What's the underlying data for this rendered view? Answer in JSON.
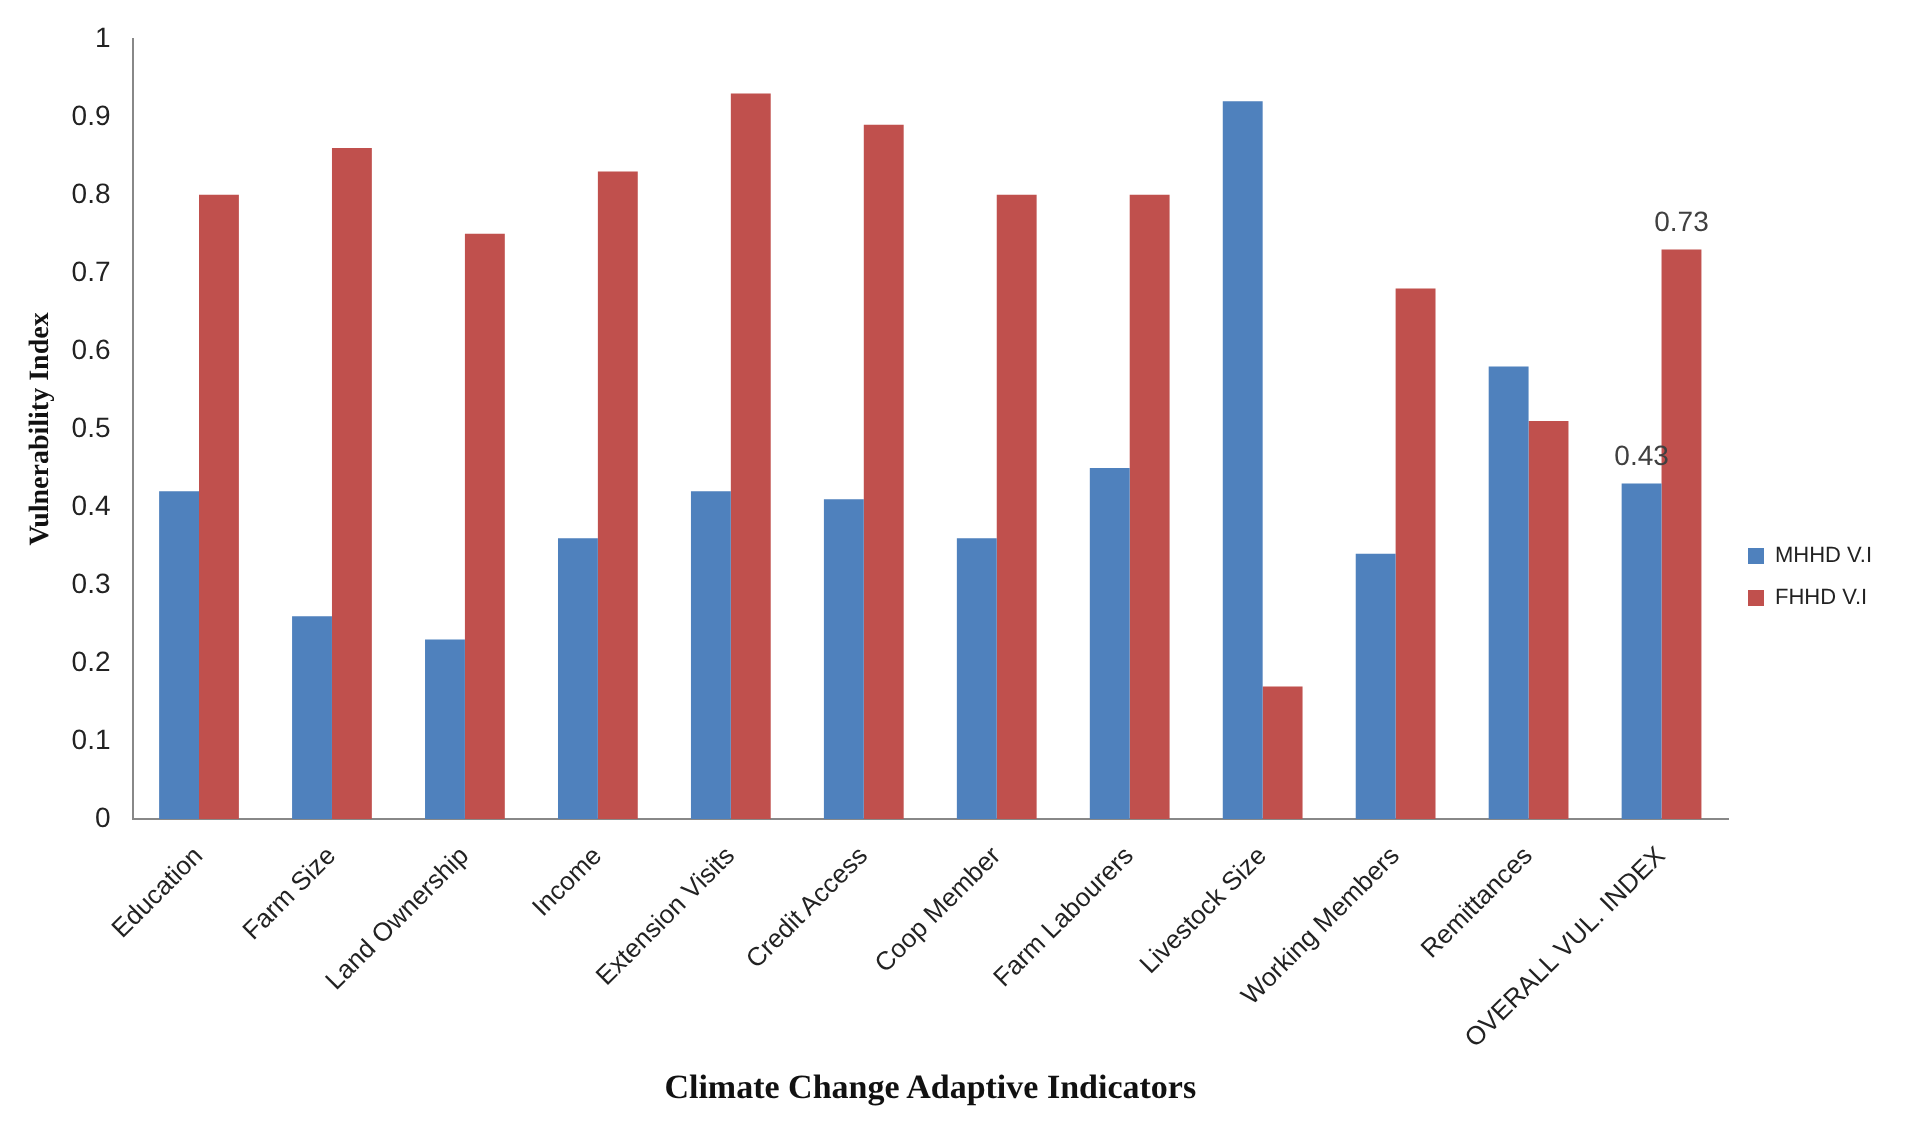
{
  "chart_data": {
    "type": "bar",
    "xlabel": "Climate Change Adaptive Indicators",
    "ylabel": "Vulnerability Index",
    "categories": [
      "Education",
      "Farm Size",
      "Land Ownership",
      "Income",
      "Extension Visits",
      "Credit Access",
      "Coop Member",
      "Farm Labourers",
      "Livestock Size",
      "Working Members",
      "Remittances",
      "OVERALL VUL. INDEX"
    ],
    "series": [
      {
        "name": "MHHD V.I",
        "color": "#4f81bd",
        "values": [
          0.42,
          0.26,
          0.23,
          0.36,
          0.42,
          0.41,
          0.36,
          0.45,
          0.92,
          0.34,
          0.58,
          0.43
        ],
        "value_labels": [
          null,
          null,
          null,
          null,
          null,
          null,
          null,
          null,
          null,
          null,
          null,
          "0.43"
        ]
      },
      {
        "name": "FHHD V.I",
        "color": "#c0504d",
        "values": [
          0.8,
          0.86,
          0.75,
          0.83,
          0.93,
          0.89,
          0.8,
          0.8,
          0.17,
          0.68,
          0.51,
          0.73
        ],
        "value_labels": [
          null,
          null,
          null,
          null,
          null,
          null,
          null,
          null,
          null,
          null,
          null,
          "0.73"
        ]
      }
    ],
    "ylim": [
      0,
      1
    ],
    "yticks": [
      0,
      0.1,
      0.2,
      0.3,
      0.4,
      0.5,
      0.6,
      0.7,
      0.8,
      0.9,
      1
    ],
    "grid": false,
    "legend": "right"
  }
}
